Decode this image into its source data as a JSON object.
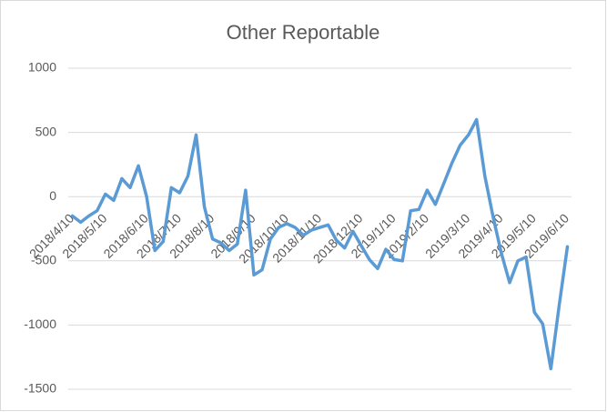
{
  "chart_data": {
    "type": "line",
    "title": "Other Reportable",
    "categories": [
      "2018/4/10",
      null,
      null,
      null,
      "2018/5/10",
      null,
      null,
      null,
      null,
      "2018/6/10",
      null,
      null,
      null,
      "2018/7/10",
      null,
      null,
      null,
      "2018/8/10",
      null,
      null,
      null,
      null,
      "2018/9/10",
      null,
      null,
      null,
      "2018/10/10",
      null,
      null,
      null,
      "2018/11/10",
      null,
      null,
      null,
      null,
      "2018/12/10",
      null,
      null,
      null,
      "2019/1/10",
      null,
      null,
      null,
      "2019/2/10",
      null,
      null,
      null,
      null,
      "2019/3/10",
      null,
      null,
      null,
      "2019/4/10",
      null,
      null,
      null,
      "2019/5/10",
      null,
      null,
      null,
      "2019/6/10"
    ],
    "series": [
      {
        "name": "Other Reportable",
        "color": "#5b9bd5",
        "values": [
          -150,
          -200,
          -150,
          -110,
          20,
          -30,
          140,
          70,
          240,
          0,
          -420,
          -350,
          70,
          30,
          160,
          480,
          -80,
          -330,
          -360,
          -420,
          -370,
          50,
          -610,
          -570,
          -330,
          -240,
          -210,
          -240,
          -300,
          -260,
          -240,
          -220,
          -340,
          -400,
          -270,
          -380,
          -490,
          -560,
          -410,
          -490,
          -500,
          -110,
          -100,
          50,
          -60,
          100,
          260,
          400,
          480,
          600,
          160,
          -160,
          -440,
          -670,
          -500,
          -470,
          -900,
          -990,
          -1340,
          -850,
          -390
        ]
      }
    ],
    "ylim": [
      -1500,
      1000
    ],
    "yticks": [
      -1500,
      -1000,
      -500,
      0,
      500,
      1000
    ],
    "grid": true
  }
}
